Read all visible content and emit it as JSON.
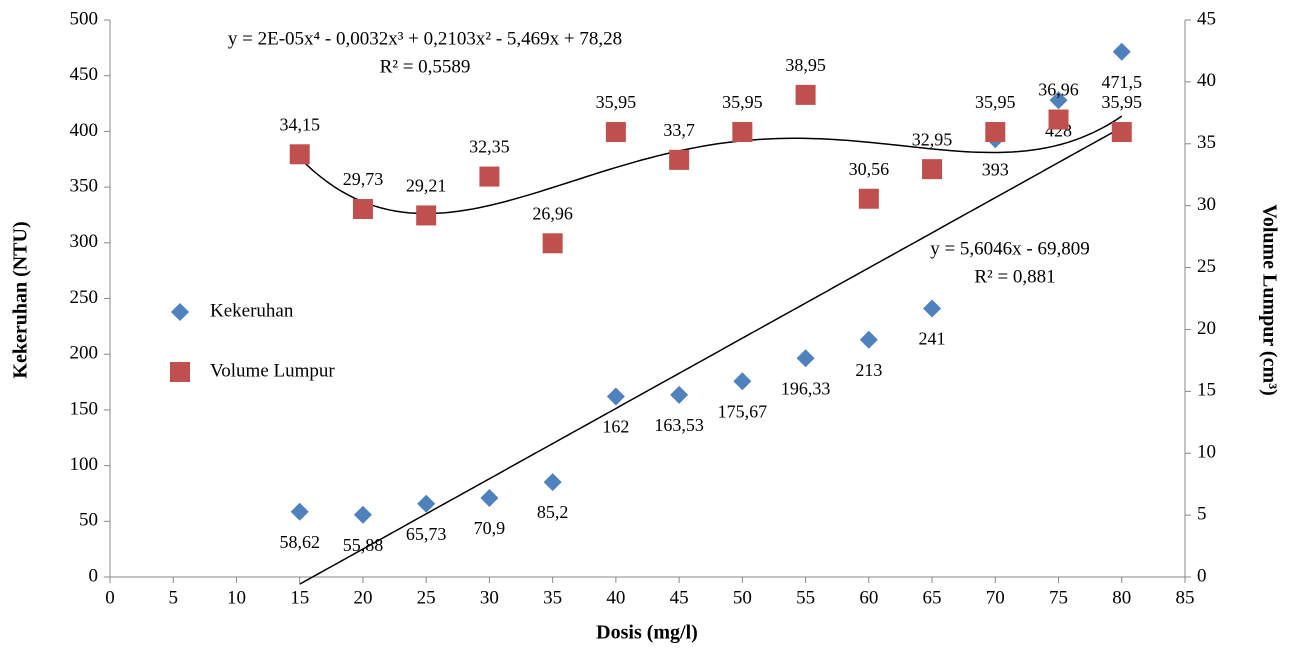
{
  "chart_data": {
    "type": "scatter",
    "x": [
      15,
      20,
      25,
      30,
      35,
      40,
      45,
      50,
      55,
      60,
      65,
      70,
      75,
      80
    ],
    "series": [
      {
        "name": "Kekeruhan",
        "color": "#4f81bd",
        "marker": "diamond",
        "values": [
          58.62,
          55.88,
          65.73,
          70.9,
          85.2,
          162,
          163.53,
          175.67,
          196.33,
          213,
          241,
          393,
          428,
          471.5
        ],
        "value_labels": [
          "58,62",
          "55,88",
          "65,73",
          "70,9",
          "85,2",
          "162",
          "163,53",
          "175,67",
          "196,33",
          "213",
          "241",
          "393",
          "428",
          "471,5"
        ]
      },
      {
        "name": "Volume Lumpur",
        "color": "#c0504d",
        "marker": "square",
        "axis": "y2",
        "values": [
          34.15,
          29.73,
          29.21,
          32.35,
          26.96,
          35.95,
          33.7,
          35.95,
          38.95,
          30.56,
          32.95,
          35.95,
          36.96,
          35.95
        ],
        "value_labels": [
          "34,15",
          "29,73",
          "29,21",
          "32,35",
          "26,96",
          "35,95",
          "33,7",
          "35,95",
          "38,95",
          "30,56",
          "32,95",
          "35,95",
          "36,96",
          "35,95"
        ]
      }
    ],
    "trendlines": [
      {
        "series": 0,
        "degree": 1,
        "equation": "y = 5,6046x - 69,809",
        "r2": "R² = 0,881"
      },
      {
        "series": 1,
        "degree": 4,
        "equation": "y = 2E-05x⁴ - 0,0032x³ + 0,2103x² - 5,469x + 78,28",
        "r2": "R² = 0,5589"
      }
    ],
    "x_label": "Dosis (mg/l)",
    "y_label": "Kekeruhan (NTU)",
    "y2_label": "Volume Lumpur (cm³)",
    "xlim": [
      0,
      85
    ],
    "xticks": [
      0,
      5,
      10,
      15,
      20,
      25,
      30,
      35,
      40,
      45,
      50,
      55,
      60,
      65,
      70,
      75,
      80,
      85
    ],
    "ylim": [
      0,
      500
    ],
    "yticks": [
      0,
      50,
      100,
      150,
      200,
      250,
      300,
      350,
      400,
      450,
      500
    ],
    "y2lim": [
      0,
      45
    ],
    "y2ticks": [
      0,
      5,
      10,
      15,
      20,
      25,
      30,
      35,
      40,
      45
    ],
    "grid": false,
    "legend": "left"
  }
}
